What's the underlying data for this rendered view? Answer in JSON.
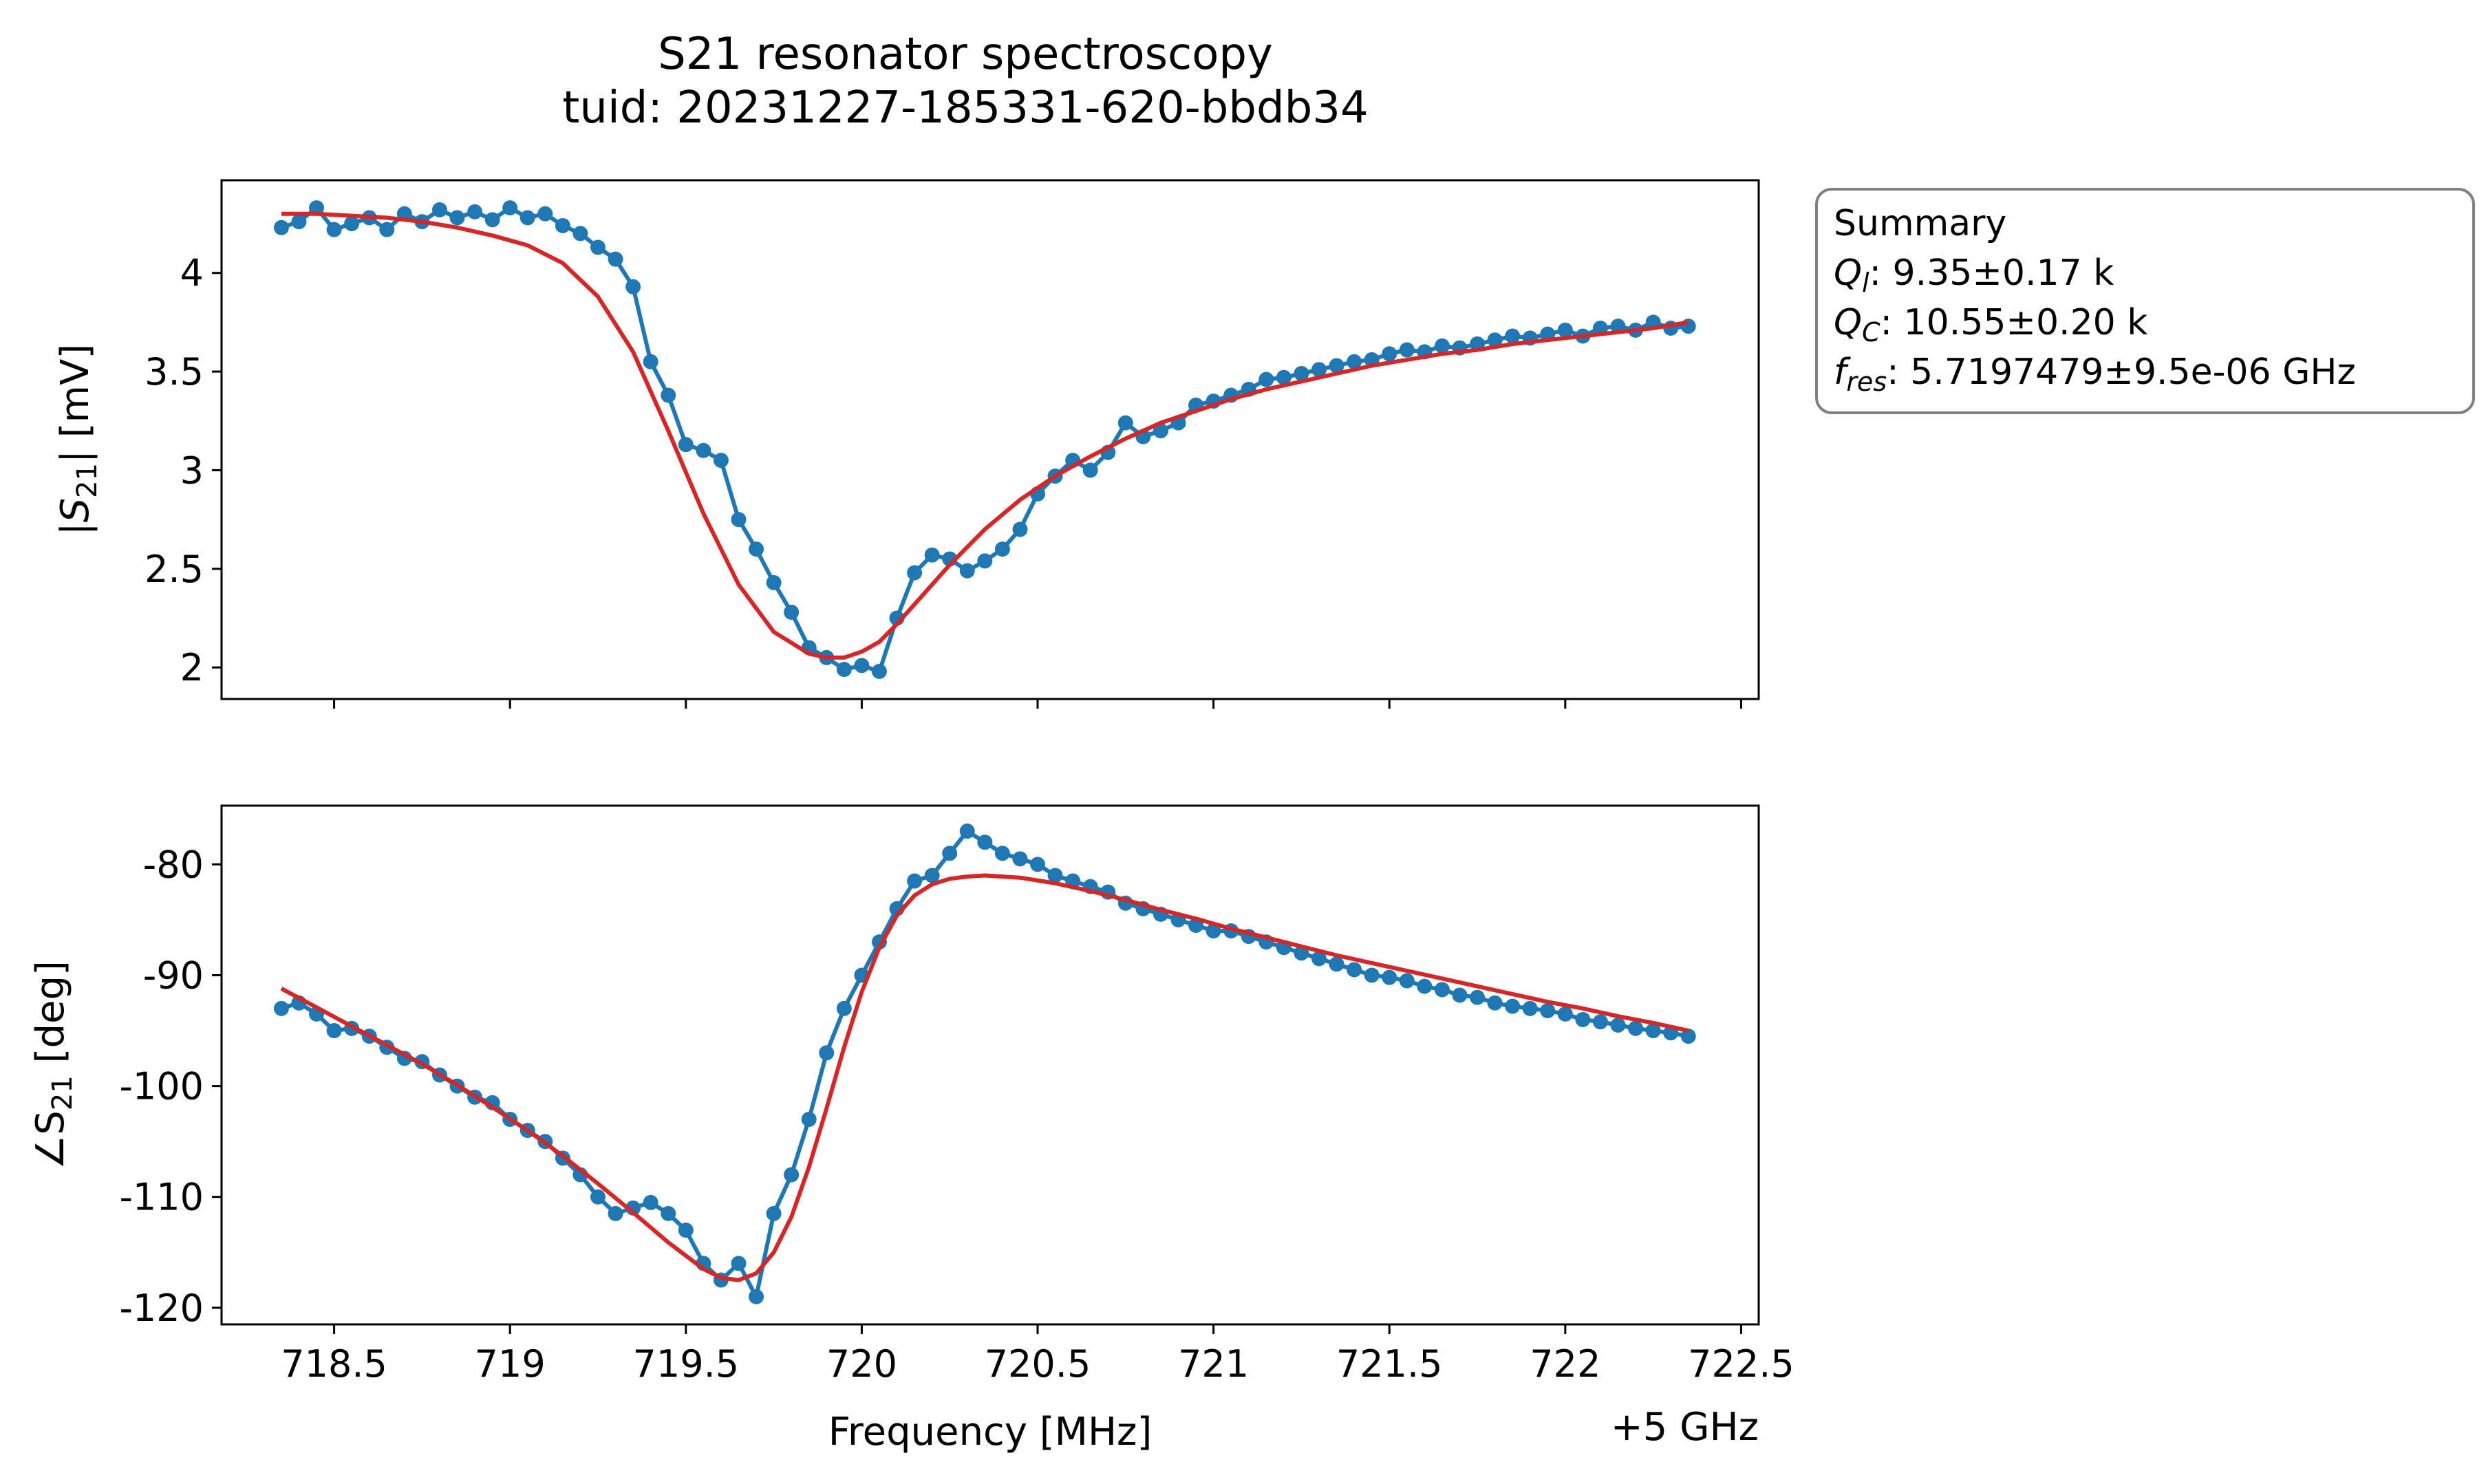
{
  "chart_data": {
    "title": "S21 resonator spectroscopy",
    "subtitle": "tuid: 20231227-185331-620-bbdb34",
    "xlabel": "Frequency [MHz]",
    "x_offset_label": "+5 GHz",
    "xlim": [
      718.18,
      722.55
    ],
    "x_ticks": [
      {
        "value": 718.5,
        "label": "718.5"
      },
      {
        "value": 719,
        "label": "719"
      },
      {
        "value": 719.5,
        "label": "719.5"
      },
      {
        "value": 720,
        "label": "720"
      },
      {
        "value": 720.5,
        "label": "720.5"
      },
      {
        "value": 721,
        "label": "721"
      },
      {
        "value": 721.5,
        "label": "721.5"
      },
      {
        "value": 722,
        "label": "722"
      },
      {
        "value": 722.5,
        "label": "722.5"
      }
    ],
    "colors": {
      "data": "#1f77b4",
      "fit": "#d62728"
    },
    "panels": [
      {
        "id": "magnitude",
        "type": "line",
        "ylabel_prefix": "|S",
        "ylabel_sub": "21",
        "ylabel_suffix": "| [mV]",
        "ylim": [
          1.84,
          4.47
        ],
        "y_ticks": [
          {
            "value": 2,
            "label": "2"
          },
          {
            "value": 2.5,
            "label": "2.5"
          },
          {
            "value": 3,
            "label": "3"
          },
          {
            "value": 3.5,
            "label": "3.5"
          },
          {
            "value": 4,
            "label": "4"
          }
        ],
        "series": [
          {
            "kind": "data",
            "x": [
              718.35,
              718.4,
              718.45,
              718.5,
              718.55,
              718.6,
              718.65,
              718.7,
              718.75,
              718.8,
              718.85,
              718.9,
              718.95,
              719.0,
              719.05,
              719.1,
              719.15,
              719.2,
              719.25,
              719.3,
              719.35,
              719.4,
              719.45,
              719.5,
              719.55,
              719.6,
              719.65,
              719.7,
              719.75,
              719.8,
              719.85,
              719.9,
              719.95,
              720.0,
              720.05,
              720.1,
              720.15,
              720.2,
              720.25,
              720.3,
              720.35,
              720.4,
              720.45,
              720.5,
              720.55,
              720.6,
              720.65,
              720.7,
              720.75,
              720.8,
              720.85,
              720.9,
              720.95,
              721.0,
              721.05,
              721.1,
              721.15,
              721.2,
              721.25,
              721.3,
              721.35,
              721.4,
              721.45,
              721.5,
              721.55,
              721.6,
              721.65,
              721.7,
              721.75,
              721.8,
              721.85,
              721.9,
              721.95,
              722.0,
              722.05,
              722.1,
              722.15,
              722.2,
              722.25,
              722.3,
              722.35
            ],
            "y": [
              4.23,
              4.26,
              4.33,
              4.22,
              4.25,
              4.28,
              4.22,
              4.3,
              4.26,
              4.32,
              4.28,
              4.31,
              4.27,
              4.33,
              4.28,
              4.3,
              4.24,
              4.2,
              4.13,
              4.07,
              3.93,
              3.55,
              3.38,
              3.13,
              3.1,
              3.05,
              2.75,
              2.6,
              2.43,
              2.28,
              2.1,
              2.05,
              1.99,
              2.01,
              1.98,
              2.25,
              2.48,
              2.57,
              2.55,
              2.49,
              2.54,
              2.6,
              2.7,
              2.88,
              2.97,
              3.05,
              3.0,
              3.09,
              3.24,
              3.17,
              3.2,
              3.24,
              3.33,
              3.35,
              3.38,
              3.41,
              3.46,
              3.47,
              3.49,
              3.51,
              3.53,
              3.55,
              3.56,
              3.59,
              3.61,
              3.6,
              3.63,
              3.62,
              3.64,
              3.66,
              3.68,
              3.67,
              3.69,
              3.71,
              3.68,
              3.72,
              3.73,
              3.71,
              3.75,
              3.72,
              3.73
            ]
          },
          {
            "kind": "fit",
            "x": [
              718.35,
              718.45,
              718.55,
              718.65,
              718.75,
              718.85,
              718.95,
              719.05,
              719.15,
              719.25,
              719.35,
              719.45,
              719.55,
              719.65,
              719.75,
              719.85,
              719.9,
              719.95,
              720.0,
              720.05,
              720.1,
              720.15,
              720.25,
              720.35,
              720.45,
              720.55,
              720.65,
              720.75,
              720.85,
              720.95,
              721.05,
              721.15,
              721.25,
              721.35,
              721.45,
              721.55,
              721.65,
              721.75,
              721.85,
              721.95,
              722.05,
              722.15,
              722.25,
              722.35
            ],
            "y": [
              4.3,
              4.3,
              4.29,
              4.28,
              4.26,
              4.23,
              4.19,
              4.14,
              4.05,
              3.88,
              3.6,
              3.2,
              2.78,
              2.42,
              2.18,
              2.07,
              2.05,
              2.05,
              2.08,
              2.13,
              2.22,
              2.32,
              2.52,
              2.7,
              2.85,
              2.97,
              3.07,
              3.16,
              3.24,
              3.3,
              3.36,
              3.41,
              3.45,
              3.49,
              3.53,
              3.56,
              3.59,
              3.61,
              3.64,
              3.66,
              3.68,
              3.7,
              3.72,
              3.75
            ]
          }
        ]
      },
      {
        "id": "phase",
        "type": "line",
        "ylabel_prefix": "∠S",
        "ylabel_sub": "21",
        "ylabel_suffix": " [deg]",
        "ylim": [
          -121.5,
          -74.7
        ],
        "y_ticks": [
          {
            "value": -80,
            "label": "-80"
          },
          {
            "value": -90,
            "label": "-90"
          },
          {
            "value": -100,
            "label": "-100"
          },
          {
            "value": -110,
            "label": "-110"
          },
          {
            "value": -120,
            "label": "-120"
          }
        ],
        "series": [
          {
            "kind": "data",
            "x": [
              718.35,
              718.4,
              718.45,
              718.5,
              718.55,
              718.6,
              718.65,
              718.7,
              718.75,
              718.8,
              718.85,
              718.9,
              718.95,
              719.0,
              719.05,
              719.1,
              719.15,
              719.2,
              719.25,
              719.3,
              719.35,
              719.4,
              719.45,
              719.5,
              719.55,
              719.6,
              719.65,
              719.7,
              719.75,
              719.8,
              719.85,
              719.9,
              719.95,
              720.0,
              720.05,
              720.1,
              720.15,
              720.2,
              720.25,
              720.3,
              720.35,
              720.4,
              720.45,
              720.5,
              720.55,
              720.6,
              720.65,
              720.7,
              720.75,
              720.8,
              720.85,
              720.9,
              720.95,
              721.0,
              721.05,
              721.1,
              721.15,
              721.2,
              721.25,
              721.3,
              721.35,
              721.4,
              721.45,
              721.5,
              721.55,
              721.6,
              721.65,
              721.7,
              721.75,
              721.8,
              721.85,
              721.9,
              721.95,
              722.0,
              722.05,
              722.1,
              722.15,
              722.2,
              722.25,
              722.3,
              722.35
            ],
            "y": [
              -93,
              -92.5,
              -93.5,
              -95,
              -94.8,
              -95.5,
              -96.5,
              -97.5,
              -97.8,
              -99,
              -100,
              -101,
              -101.5,
              -103,
              -104,
              -105,
              -106.5,
              -108,
              -110,
              -111.5,
              -111,
              -110.5,
              -111.5,
              -113,
              -116,
              -117.5,
              -116,
              -119,
              -111.5,
              -108,
              -103,
              -97,
              -93,
              -90,
              -87,
              -84,
              -81.5,
              -81,
              -79,
              -77,
              -78,
              -79,
              -79.5,
              -80,
              -81,
              -81.5,
              -82,
              -82.5,
              -83.5,
              -84,
              -84.5,
              -85,
              -85.5,
              -86,
              -86,
              -86.5,
              -87,
              -87.5,
              -88,
              -88.5,
              -89,
              -89.5,
              -90,
              -90.2,
              -90.5,
              -91,
              -91.3,
              -91.8,
              -92,
              -92.5,
              -92.8,
              -93,
              -93.2,
              -93.5,
              -94,
              -94.2,
              -94.5,
              -94.8,
              -95,
              -95.2,
              -95.5
            ]
          },
          {
            "kind": "fit",
            "x": [
              718.35,
              718.45,
              718.55,
              718.65,
              718.75,
              718.85,
              718.95,
              719.05,
              719.15,
              719.25,
              719.35,
              719.45,
              719.55,
              719.6,
              719.65,
              719.7,
              719.75,
              719.8,
              719.85,
              719.9,
              719.95,
              720.0,
              720.05,
              720.1,
              720.15,
              720.2,
              720.25,
              720.3,
              720.35,
              720.45,
              720.55,
              720.65,
              720.75,
              720.85,
              720.95,
              721.05,
              721.15,
              721.25,
              721.35,
              721.45,
              721.55,
              721.65,
              721.75,
              721.85,
              721.95,
              722.05,
              722.15,
              722.25,
              722.35
            ],
            "y": [
              -91.2,
              -92.9,
              -94.6,
              -96.3,
              -98,
              -99.9,
              -101.9,
              -104,
              -106.3,
              -108.8,
              -111.4,
              -114.1,
              -116.5,
              -117.3,
              -117.5,
              -116.9,
              -115,
              -111.8,
              -107.3,
              -102,
              -96.5,
              -91.5,
              -87.5,
              -84.6,
              -82.8,
              -81.8,
              -81.3,
              -81.1,
              -81,
              -81.2,
              -81.7,
              -82.4,
              -83.2,
              -84.1,
              -84.9,
              -85.8,
              -86.6,
              -87.4,
              -88.2,
              -88.9,
              -89.6,
              -90.3,
              -91,
              -91.7,
              -92.4,
              -93,
              -93.7,
              -94.3,
              -95
            ]
          }
        ]
      }
    ],
    "summary": {
      "title": "Summary",
      "lines": [
        {
          "sym": "Q",
          "sub": "l",
          "text": ": 9.35±0.17 k"
        },
        {
          "sym": "Q",
          "sub": "C",
          "text": ": 10.55±0.20 k"
        },
        {
          "sym": "f",
          "sub": "res",
          "text": ": 5.7197479±9.5e-06 GHz"
        }
      ]
    }
  }
}
